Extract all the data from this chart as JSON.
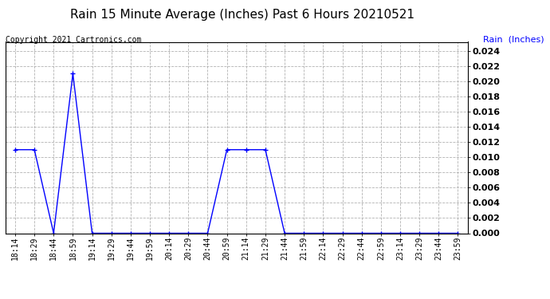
{
  "title": "Rain 15 Minute Average (Inches) Past 6 Hours 20210521",
  "copyright_text": "Copyright 2021 Cartronics.com",
  "legend_label": "Rain  (Inches)",
  "legend_color": "blue",
  "x_labels": [
    "18:14",
    "18:29",
    "18:44",
    "18:59",
    "19:14",
    "19:29",
    "19:44",
    "19:59",
    "20:14",
    "20:29",
    "20:44",
    "20:59",
    "21:14",
    "21:29",
    "21:44",
    "21:59",
    "22:14",
    "22:29",
    "22:44",
    "22:59",
    "23:14",
    "23:29",
    "23:44",
    "23:59"
  ],
  "y_values": [
    0.011,
    0.011,
    0.0,
    0.021,
    0.0,
    0.0,
    0.0,
    0.0,
    0.0,
    0.0,
    0.0,
    0.011,
    0.011,
    0.011,
    0.0,
    0.0,
    0.0,
    0.0,
    0.0,
    0.0,
    0.0,
    0.0,
    0.0,
    0.0
  ],
  "line_color": "blue",
  "marker": "+",
  "marker_size": 4,
  "ylim": [
    0.0,
    0.0252
  ],
  "yticks": [
    0.0,
    0.002,
    0.004,
    0.006,
    0.008,
    0.01,
    0.012,
    0.014,
    0.016,
    0.018,
    0.02,
    0.022,
    0.024
  ],
  "grid_color": "#aaaaaa",
  "background_color": "#ffffff",
  "title_fontsize": 11,
  "axis_fontsize": 7,
  "copyright_fontsize": 7,
  "legend_fontsize": 8
}
